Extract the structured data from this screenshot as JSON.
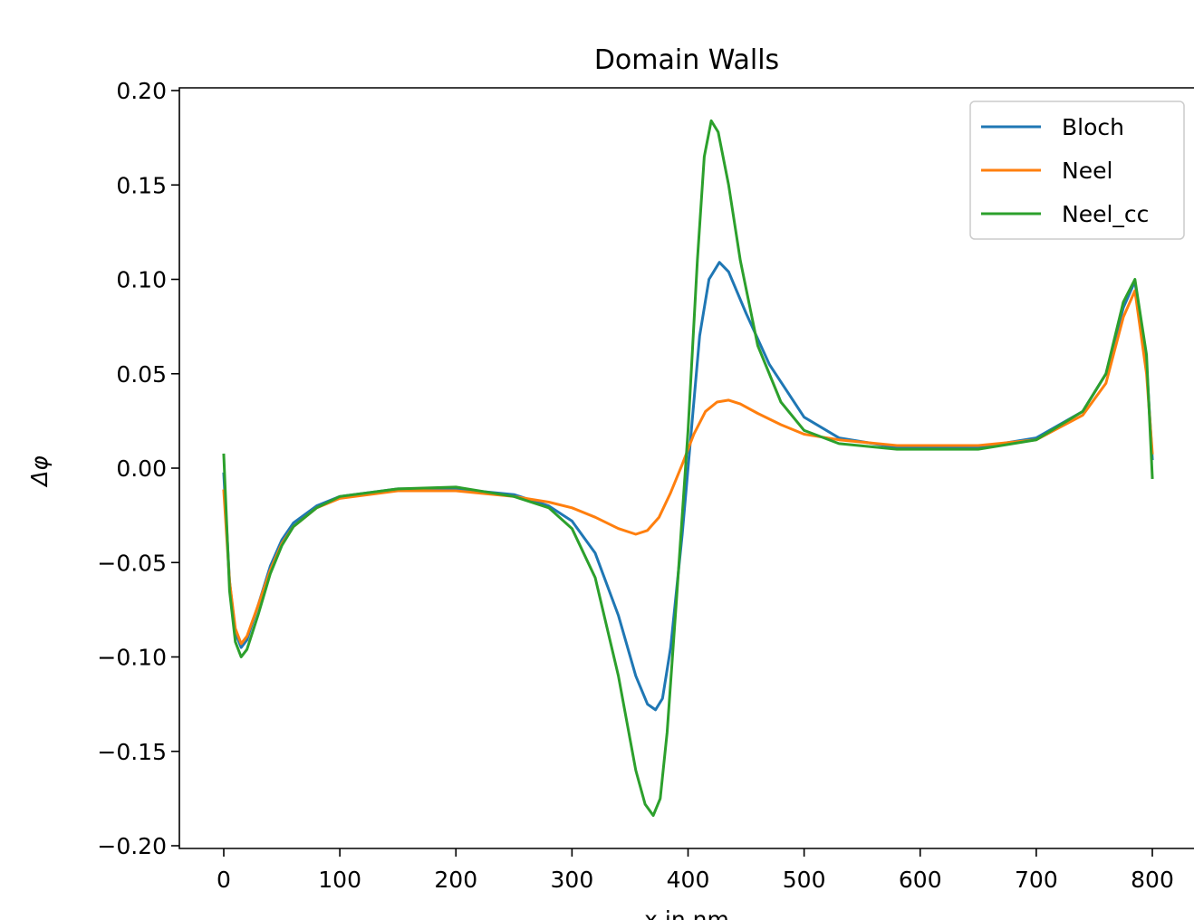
{
  "chart_data": {
    "type": "line",
    "title": "Domain Walls",
    "xlabel": "x in nm",
    "ylabel": "Δφ",
    "xlim": [
      -40,
      840
    ],
    "ylim": [
      -0.2,
      0.2
    ],
    "xticks": [
      0,
      100,
      200,
      300,
      400,
      500,
      600,
      700,
      800
    ],
    "xtick_labels": [
      "0",
      "100",
      "200",
      "300",
      "400",
      "500",
      "600",
      "700",
      "800"
    ],
    "yticks": [
      0.2,
      0.15,
      0.1,
      0.05,
      0.0,
      -0.05,
      -0.1,
      -0.15,
      -0.2
    ],
    "ytick_labels": [
      "0.20",
      "0.15",
      "0.10",
      "0.05",
      "0.00",
      "−0.05",
      "−0.10",
      "−0.15",
      "−0.20"
    ],
    "grid": false,
    "legend_position": "top-right",
    "series": [
      {
        "name": "Bloch",
        "color": "#1f77b4",
        "x": [
          0,
          5,
          10,
          15,
          20,
          30,
          40,
          50,
          60,
          80,
          100,
          150,
          200,
          250,
          280,
          300,
          320,
          340,
          355,
          365,
          372,
          378,
          385,
          395,
          400,
          405,
          410,
          418,
          427,
          435,
          450,
          470,
          500,
          530,
          580,
          650,
          700,
          740,
          760,
          775,
          785,
          795,
          800
        ],
        "y": [
          -0.003,
          -0.06,
          -0.087,
          -0.095,
          -0.091,
          -0.072,
          -0.052,
          -0.038,
          -0.029,
          -0.02,
          -0.015,
          -0.011,
          -0.011,
          -0.014,
          -0.02,
          -0.028,
          -0.045,
          -0.078,
          -0.11,
          -0.125,
          -0.128,
          -0.122,
          -0.095,
          -0.035,
          0.0,
          0.035,
          0.07,
          0.1,
          0.109,
          0.104,
          0.082,
          0.055,
          0.027,
          0.016,
          0.011,
          0.011,
          0.016,
          0.03,
          0.05,
          0.085,
          0.099,
          0.055,
          0.005
        ]
      },
      {
        "name": "Neel",
        "color": "#ff7f0e",
        "x": [
          0,
          5,
          10,
          15,
          20,
          30,
          40,
          50,
          60,
          80,
          100,
          150,
          200,
          250,
          280,
          300,
          320,
          340,
          355,
          365,
          375,
          385,
          395,
          405,
          415,
          425,
          435,
          445,
          460,
          480,
          500,
          530,
          580,
          650,
          700,
          740,
          760,
          775,
          785,
          795,
          800
        ],
        "y": [
          -0.012,
          -0.06,
          -0.085,
          -0.093,
          -0.089,
          -0.072,
          -0.054,
          -0.04,
          -0.031,
          -0.021,
          -0.016,
          -0.012,
          -0.012,
          -0.015,
          -0.018,
          -0.021,
          -0.026,
          -0.032,
          -0.035,
          -0.033,
          -0.026,
          -0.013,
          0.002,
          0.018,
          0.03,
          0.035,
          0.036,
          0.034,
          0.029,
          0.023,
          0.018,
          0.015,
          0.012,
          0.012,
          0.015,
          0.028,
          0.045,
          0.08,
          0.094,
          0.05,
          0.008
        ]
      },
      {
        "name": "Neel_cc",
        "color": "#2ca02c",
        "x": [
          0,
          5,
          10,
          15,
          20,
          30,
          40,
          50,
          60,
          80,
          100,
          150,
          200,
          250,
          280,
          300,
          320,
          340,
          355,
          363,
          370,
          376,
          382,
          390,
          400,
          408,
          414,
          420,
          426,
          435,
          445,
          460,
          480,
          500,
          530,
          580,
          650,
          700,
          740,
          760,
          775,
          785,
          795,
          800
        ],
        "y": [
          0.007,
          -0.065,
          -0.092,
          -0.1,
          -0.096,
          -0.077,
          -0.056,
          -0.041,
          -0.031,
          -0.021,
          -0.015,
          -0.011,
          -0.01,
          -0.015,
          -0.021,
          -0.032,
          -0.058,
          -0.11,
          -0.16,
          -0.178,
          -0.184,
          -0.175,
          -0.14,
          -0.07,
          0.02,
          0.11,
          0.165,
          0.184,
          0.178,
          0.15,
          0.11,
          0.065,
          0.035,
          0.02,
          0.013,
          0.01,
          0.01,
          0.015,
          0.03,
          0.05,
          0.088,
          0.1,
          0.06,
          -0.005
        ]
      }
    ]
  }
}
